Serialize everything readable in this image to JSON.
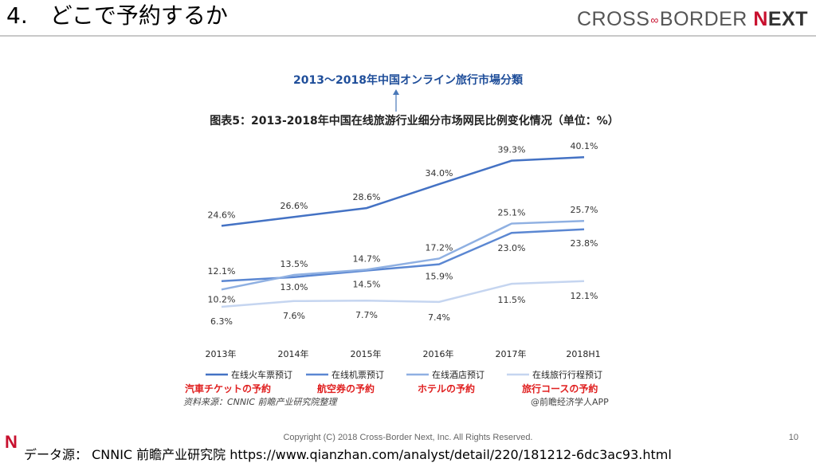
{
  "slide": {
    "title": "4.　どこで予約するか",
    "page_number": "10",
    "copyright": "Copyright (C) 2018 Cross-Border Next, Inc. All Rights Reserved.",
    "data_source": "データ源：  CNNIC 前瞻产业研究院   https://www.qianzhan.com/analyst/detail/220/181212-6dc3ac93.html",
    "logo_n": "N"
  },
  "brand": {
    "left": "CROSS",
    "mid": "∞",
    "right": "BORDER",
    "n": "N",
    "next": "EXT"
  },
  "jp_chart_title": "2013～2018年中国オンライン旅行市場分類",
  "colors": {
    "accent": "#c8102e",
    "jp_title": "#1f4e9a",
    "jp_legend": "#e02020"
  },
  "chart_data": {
    "type": "line",
    "title": "图表5：2013-2018年中国在线旅游行业细分市场网民比例变化情况（单位：%）",
    "categories": [
      "2013年",
      "2014年",
      "2015年",
      "2016年",
      "2017年",
      "2018H1"
    ],
    "ylim": [
      0,
      45
    ],
    "grid": false,
    "legend_position": "bottom",
    "series": [
      {
        "name": "在线火车票预订",
        "values": [
          24.6,
          26.6,
          28.6,
          34.0,
          39.3,
          40.1
        ],
        "labels": [
          "24.6%",
          "26.6%",
          "28.6%",
          "34.0%",
          "39.3%",
          "40.1%"
        ],
        "color": "#4472c4"
      },
      {
        "name": "在线机票预订",
        "values": [
          12.1,
          13.0,
          14.5,
          15.9,
          23.0,
          23.8
        ],
        "labels": [
          "12.1%",
          "13.0%",
          "14.5%",
          "15.9%",
          "23.0%",
          "23.8%"
        ],
        "color": "#5b87d2"
      },
      {
        "name": "在线酒店预订",
        "values": [
          10.2,
          13.5,
          14.7,
          17.2,
          25.1,
          25.7
        ],
        "labels": [
          "10.2%",
          "13.5%",
          "14.7%",
          "17.2%",
          "25.1%",
          "25.7%"
        ],
        "color": "#8fb0e2"
      },
      {
        "name": "在线旅行行程预订",
        "values": [
          6.3,
          7.6,
          7.7,
          7.4,
          11.5,
          12.1
        ],
        "labels": [
          "6.3%",
          "7.6%",
          "7.7%",
          "7.4%",
          "11.5%",
          "12.1%"
        ],
        "color": "#c5d5f0"
      }
    ],
    "source_note": "资料来源：CNNIC 前瞻产业研究院整理",
    "credit": "@前瞻经济学人APP"
  },
  "jp_legend": [
    "汽車チケットの予約",
    "航空券の予約",
    "ホテルの予約",
    "旅行コースの予約"
  ]
}
